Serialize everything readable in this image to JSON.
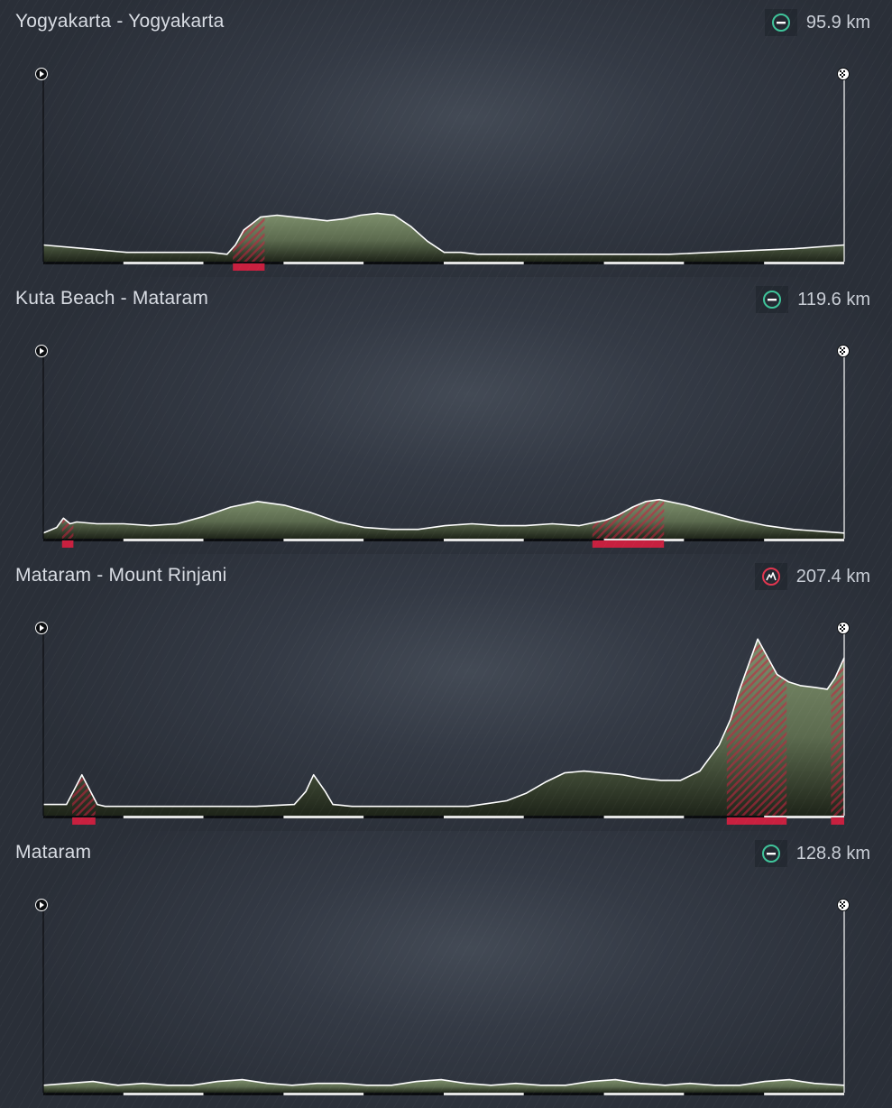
{
  "stages": [
    {
      "title": "Yogyakarta - Yogyakarta",
      "distance_label": "95.9 km",
      "icon": "flat-stage-icon",
      "icon_color": "#3fc49a"
    },
    {
      "title": "Kuta Beach - Mataram",
      "distance_label": "119.6 km",
      "icon": "flat-stage-icon",
      "icon_color": "#3fc49a"
    },
    {
      "title": "Mataram - Mount Rinjani",
      "distance_label": "207.4 km",
      "icon": "mountain-stage-icon",
      "icon_color": "#e0364f"
    },
    {
      "title": "Mataram",
      "distance_label": "128.8 km",
      "icon": "flat-stage-icon",
      "icon_color": "#3fc49a"
    }
  ],
  "colors": {
    "terrain": "#5c6b4f",
    "terrain_dark": "#1e2419",
    "climb": "#c8203f",
    "profile_line": "#ffffff"
  },
  "chart_data": [
    {
      "type": "area",
      "title": "Yogyakarta - Yogyakarta",
      "distance_km": 95.9,
      "x_range": [
        0,
        95.9
      ],
      "y_range": [
        0,
        1
      ],
      "x": [
        0,
        5,
        10,
        15,
        20,
        22,
        23,
        24,
        26,
        28,
        30,
        32,
        34,
        36,
        38,
        40,
        42,
        44,
        46,
        48,
        50,
        52,
        54,
        56,
        60,
        65,
        70,
        75,
        80,
        85,
        90,
        95.9
      ],
      "y": [
        0.09,
        0.07,
        0.05,
        0.05,
        0.05,
        0.04,
        0.09,
        0.17,
        0.24,
        0.25,
        0.24,
        0.23,
        0.22,
        0.23,
        0.25,
        0.26,
        0.25,
        0.19,
        0.11,
        0.05,
        0.05,
        0.04,
        0.04,
        0.04,
        0.04,
        0.04,
        0.04,
        0.04,
        0.05,
        0.06,
        0.07,
        0.09
      ],
      "climbs": [
        [
          22.7,
          26.5
        ]
      ]
    },
    {
      "type": "area",
      "title": "Kuta Beach - Mataram",
      "distance_km": 119.6,
      "x_range": [
        0,
        119.6
      ],
      "y_range": [
        0,
        1
      ],
      "x": [
        0,
        2,
        3,
        4,
        5,
        8,
        12,
        16,
        20,
        24,
        28,
        32,
        36,
        40,
        44,
        48,
        52,
        56,
        60,
        64,
        68,
        72,
        76,
        80,
        84,
        86,
        88,
        90,
        92,
        96,
        100,
        104,
        108,
        112,
        116,
        119.6
      ],
      "y": [
        0.03,
        0.06,
        0.11,
        0.08,
        0.09,
        0.08,
        0.08,
        0.07,
        0.08,
        0.12,
        0.17,
        0.2,
        0.18,
        0.14,
        0.09,
        0.06,
        0.05,
        0.05,
        0.07,
        0.08,
        0.07,
        0.07,
        0.08,
        0.07,
        0.1,
        0.13,
        0.17,
        0.2,
        0.21,
        0.18,
        0.14,
        0.1,
        0.07,
        0.05,
        0.04,
        0.03
      ],
      "climbs": [
        [
          2.8,
          4.5
        ],
        [
          82,
          92.7
        ]
      ]
    },
    {
      "type": "area",
      "title": "Mataram - Mount Rinjani",
      "distance_km": 207.4,
      "x_range": [
        0,
        207.4
      ],
      "y_range": [
        0,
        1
      ],
      "x": [
        0,
        6,
        8,
        10,
        12,
        14,
        16,
        20,
        30,
        40,
        55,
        65,
        68,
        70,
        73,
        75,
        80,
        90,
        100,
        110,
        120,
        125,
        130,
        135,
        140,
        145,
        150,
        155,
        160,
        165,
        170,
        175,
        178,
        180,
        185,
        190,
        193,
        196,
        200,
        203,
        205,
        207.4
      ],
      "y": [
        0.06,
        0.06,
        0.14,
        0.22,
        0.14,
        0.06,
        0.05,
        0.05,
        0.05,
        0.05,
        0.05,
        0.06,
        0.13,
        0.22,
        0.13,
        0.06,
        0.05,
        0.05,
        0.05,
        0.05,
        0.08,
        0.12,
        0.18,
        0.23,
        0.24,
        0.23,
        0.22,
        0.2,
        0.19,
        0.19,
        0.24,
        0.38,
        0.52,
        0.66,
        0.95,
        0.76,
        0.72,
        0.7,
        0.69,
        0.68,
        0.74,
        0.85
      ],
      "climbs": [
        [
          7.5,
          13.5
        ],
        [
          177,
          192.5
        ],
        [
          204,
          207.4
        ]
      ]
    },
    {
      "type": "area",
      "title": "Mataram",
      "distance_km": 128.8,
      "x_range": [
        0,
        128.8
      ],
      "y_range": [
        0,
        1
      ],
      "x": [
        0,
        4,
        8,
        12,
        16,
        20,
        24,
        28,
        32,
        36,
        40,
        44,
        48,
        52,
        56,
        60,
        64,
        68,
        72,
        76,
        80,
        84,
        88,
        92,
        96,
        100,
        104,
        108,
        112,
        116,
        120,
        124,
        128.8
      ],
      "y": [
        0.04,
        0.05,
        0.06,
        0.04,
        0.05,
        0.04,
        0.04,
        0.06,
        0.07,
        0.05,
        0.04,
        0.05,
        0.05,
        0.04,
        0.04,
        0.06,
        0.07,
        0.05,
        0.04,
        0.05,
        0.04,
        0.04,
        0.06,
        0.07,
        0.05,
        0.04,
        0.05,
        0.04,
        0.04,
        0.06,
        0.07,
        0.05,
        0.04
      ],
      "climbs": []
    }
  ]
}
